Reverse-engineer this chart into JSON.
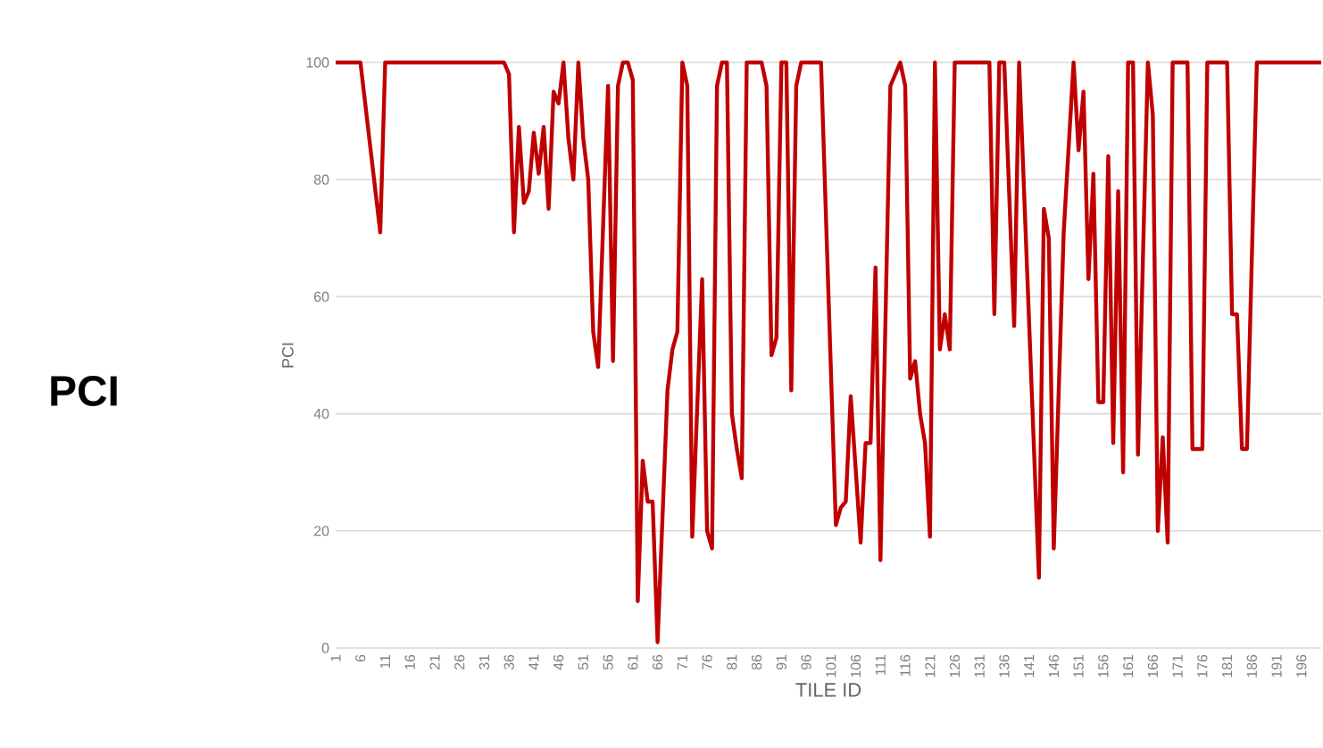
{
  "chart_data": {
    "type": "line",
    "xlabel": "TILE ID",
    "ylabel": "PCI",
    "annotations": [
      "PCI"
    ],
    "color": "#c00000",
    "grid": "y",
    "xlim": [
      1,
      200
    ],
    "xticks": [
      1,
      6,
      11,
      16,
      21,
      26,
      31,
      36,
      41,
      46,
      51,
      56,
      61,
      66,
      71,
      76,
      81,
      86,
      91,
      96,
      101,
      106,
      111,
      116,
      121,
      126,
      131,
      136,
      141,
      146,
      151,
      156,
      161,
      166,
      171,
      176,
      181,
      186,
      191,
      196
    ],
    "ylim": [
      0,
      100
    ],
    "yticks": [
      0,
      20,
      40,
      60,
      80,
      100
    ],
    "x": [
      1,
      6,
      10,
      11,
      35,
      36,
      37,
      38,
      39,
      40,
      41,
      42,
      43,
      44,
      45,
      46,
      47,
      48,
      49,
      50,
      51,
      52,
      53,
      54,
      56,
      57,
      58,
      59,
      60,
      61,
      62,
      63,
      64,
      65,
      66,
      68,
      69,
      70,
      71,
      72,
      73,
      75,
      76,
      77,
      78,
      79,
      80,
      81,
      82,
      83,
      84,
      87,
      88,
      89,
      90,
      91,
      92,
      93,
      94,
      95,
      99,
      102,
      103,
      104,
      105,
      107,
      108,
      109,
      110,
      111,
      113,
      115,
      116,
      117,
      118,
      119,
      120,
      121,
      122,
      123,
      124,
      125,
      126,
      133,
      134,
      135,
      136,
      138,
      139,
      143,
      144,
      145,
      146,
      148,
      150,
      151,
      152,
      153,
      154,
      155,
      156,
      157,
      158,
      159,
      160,
      161,
      162,
      163,
      165,
      166,
      167,
      168,
      169,
      170,
      173,
      174,
      176,
      177,
      181,
      182,
      183,
      184,
      185,
      187,
      200
    ],
    "values": [
      100,
      100,
      71,
      100,
      100,
      98,
      71,
      89,
      76,
      78,
      88,
      81,
      89,
      75,
      95,
      93,
      100,
      87,
      80,
      100,
      87,
      80,
      54,
      48,
      96,
      49,
      96,
      100,
      100,
      97,
      8,
      32,
      25,
      25,
      1,
      44,
      51,
      54,
      100,
      96,
      19,
      63,
      20,
      17,
      96,
      100,
      100,
      40,
      34,
      29,
      100,
      100,
      96,
      50,
      53,
      100,
      100,
      44,
      96,
      100,
      100,
      21,
      24,
      25,
      43,
      18,
      35,
      35,
      65,
      15,
      96,
      100,
      96,
      46,
      49,
      40,
      35,
      19,
      100,
      51,
      57,
      51,
      100,
      100,
      57,
      100,
      100,
      55,
      100,
      12,
      75,
      70,
      17,
      71,
      100,
      85,
      95,
      63,
      81,
      42,
      42,
      84,
      35,
      78,
      30,
      100,
      100,
      33,
      100,
      91,
      20,
      36,
      18,
      100,
      100,
      34,
      34,
      100,
      100,
      57,
      57,
      34,
      34,
      100,
      100
    ]
  }
}
